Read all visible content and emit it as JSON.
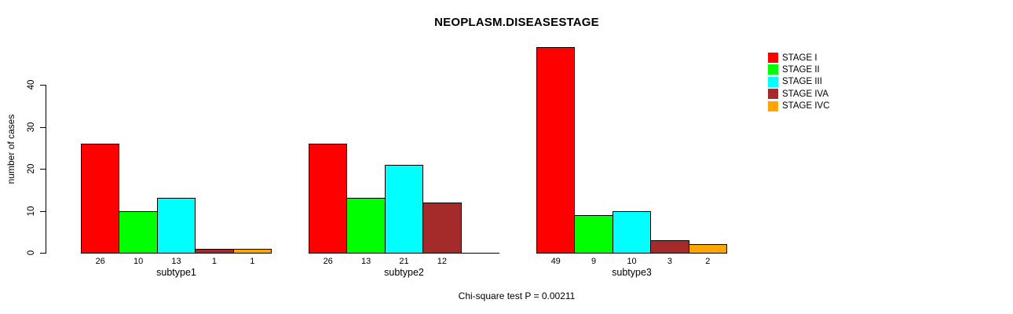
{
  "chart_data": {
    "type": "bar",
    "title": "NEOPLASM.DISEASESTAGE",
    "ylabel": "number of cases",
    "footnote": "Chi-square test P = 0.00211",
    "ylim": [
      0,
      40
    ],
    "yticks": [
      0,
      10,
      20,
      30,
      40
    ],
    "grid": false,
    "legend_position": "right",
    "legend": [
      {
        "label": "STAGE I",
        "color": "#FF0000"
      },
      {
        "label": "STAGE II",
        "color": "#00FF00"
      },
      {
        "label": "STAGE III",
        "color": "#00FFFF"
      },
      {
        "label": "STAGE IVA",
        "color": "#A52A2A"
      },
      {
        "label": "STAGE IVC",
        "color": "#FFA500"
      }
    ],
    "categories": [
      "subtype1",
      "subtype2",
      "subtype3"
    ],
    "groups": [
      {
        "label": "subtype1",
        "values": [
          26,
          10,
          13,
          1,
          1
        ]
      },
      {
        "label": "subtype2",
        "values": [
          26,
          13,
          21,
          12,
          null
        ]
      },
      {
        "label": "subtype3",
        "values": [
          49,
          9,
          10,
          3,
          2
        ]
      }
    ]
  }
}
